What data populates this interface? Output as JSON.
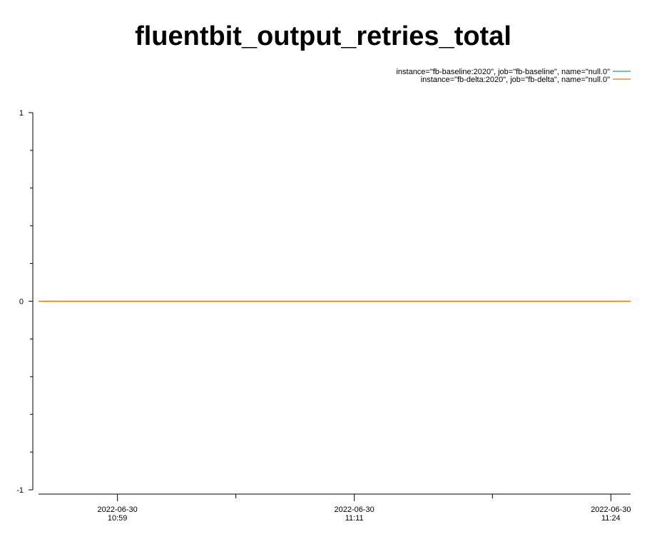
{
  "chart_data": {
    "type": "line",
    "title": "fluentbit_output_retries_total",
    "xlabel": "",
    "ylabel": "",
    "ylim": [
      -1,
      1
    ],
    "y_ticks": [
      {
        "value": 1,
        "label": "1"
      },
      {
        "value": 0,
        "label": "0"
      },
      {
        "value": -1,
        "label": "-1"
      }
    ],
    "y_minor_ticks": [
      0.8,
      0.6,
      0.4,
      0.2,
      -0.2,
      -0.4,
      -0.6,
      -0.8
    ],
    "x_range": [
      "2022-06-30 10:55",
      "2022-06-30 11:25"
    ],
    "x_ticks": [
      {
        "value": "2022-06-30 10:59",
        "date": "2022-06-30",
        "time": "10:59"
      },
      {
        "value": "2022-06-30 11:11",
        "date": "2022-06-30",
        "time": "11:11"
      },
      {
        "value": "2022-06-30 11:24",
        "date": "2022-06-30",
        "time": "11:24"
      }
    ],
    "x_minor_ticks": [
      "2022-06-30 11:05",
      "2022-06-30 11:18"
    ],
    "grid": false,
    "legend_position": "top-right",
    "series": [
      {
        "name": "instance=\"fb-baseline:2020\", job=\"fb-baseline\", name=\"null.0\"",
        "color": "#1a9a9a",
        "x": [
          "2022-06-30 10:55",
          "2022-06-30 11:25"
        ],
        "y": [
          0,
          0
        ]
      },
      {
        "name": "instance=\"fb-delta:2020\", job=\"fb-delta\", name=\"null.0\"",
        "color": "#e07b00",
        "x": [
          "2022-06-30 10:55",
          "2022-06-30 11:25"
        ],
        "y": [
          0,
          0
        ]
      }
    ]
  }
}
